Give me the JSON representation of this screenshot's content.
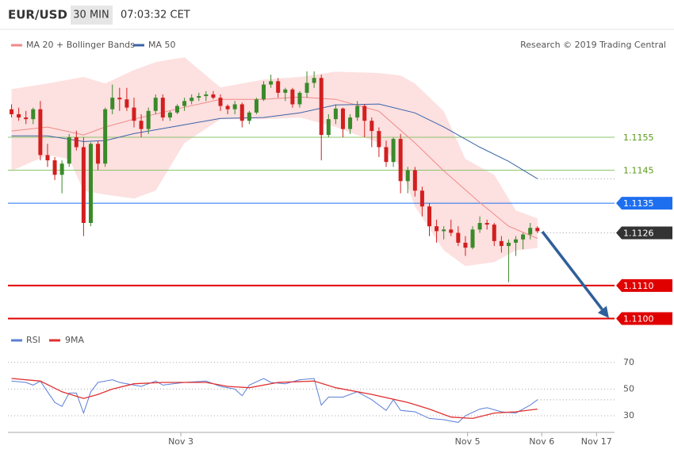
{
  "header": {
    "symbol": "EUR/USD",
    "interval": "30 MIN",
    "time": "07:03:32 CET"
  },
  "chart_data": [
    {
      "type": "candlestick",
      "credit": "Research © 2019 Trading Central",
      "up_color": "#3a8a2a",
      "down_color": "#d21f1f",
      "xlim": [
        -0.5,
        83.7
      ],
      "ylim": [
        1.10977,
        1.11798
      ],
      "ohlc": [
        [
          1.11635,
          1.1165,
          1.1161,
          1.1162
        ],
        [
          1.1162,
          1.1164,
          1.116,
          1.1161
        ],
        [
          1.1161,
          1.1163,
          1.1159,
          1.11605
        ],
        [
          1.11605,
          1.1164,
          1.1159,
          1.11635
        ],
        [
          1.11635,
          1.1166,
          1.1148,
          1.11496
        ],
        [
          1.11496,
          1.1153,
          1.1146,
          1.1148
        ],
        [
          1.1148,
          1.1149,
          1.1142,
          1.11436
        ],
        [
          1.11436,
          1.1148,
          1.1138,
          1.1147
        ],
        [
          1.1147,
          1.1156,
          1.1146,
          1.1155
        ],
        [
          1.1155,
          1.1157,
          1.1151,
          1.1152
        ],
        [
          1.1152,
          1.1155,
          1.1125,
          1.1129
        ],
        [
          1.1129,
          1.11535,
          1.1128,
          1.1153
        ],
        [
          1.1153,
          1.1154,
          1.1145,
          1.1147
        ],
        [
          1.1147,
          1.1164,
          1.1146,
          1.11635
        ],
        [
          1.11635,
          1.1171,
          1.1162,
          1.1167
        ],
        [
          1.1167,
          1.117,
          1.1163,
          1.11665
        ],
        [
          1.11665,
          1.117,
          1.1163,
          1.1164
        ],
        [
          1.1164,
          1.1167,
          1.1158,
          1.116
        ],
        [
          1.116,
          1.1162,
          1.1155,
          1.11575
        ],
        [
          1.11575,
          1.1164,
          1.1156,
          1.1163
        ],
        [
          1.1163,
          1.1168,
          1.1162,
          1.1167
        ],
        [
          1.1167,
          1.1168,
          1.116,
          1.1161
        ],
        [
          1.1161,
          1.1163,
          1.116,
          1.11625
        ],
        [
          1.11625,
          1.1165,
          1.1162,
          1.11645
        ],
        [
          1.11645,
          1.1167,
          1.1163,
          1.1166
        ],
        [
          1.1166,
          1.1168,
          1.1165,
          1.1167
        ],
        [
          1.1167,
          1.11685,
          1.1166,
          1.11675
        ],
        [
          1.11675,
          1.1169,
          1.1166,
          1.1168
        ],
        [
          1.1168,
          1.1169,
          1.11665,
          1.1167
        ],
        [
          1.1167,
          1.1168,
          1.1163,
          1.11645
        ],
        [
          1.11645,
          1.1165,
          1.1162,
          1.11635
        ],
        [
          1.11635,
          1.1166,
          1.1162,
          1.1165
        ],
        [
          1.1165,
          1.11655,
          1.1158,
          1.116
        ],
        [
          1.116,
          1.1163,
          1.1159,
          1.11625
        ],
        [
          1.11625,
          1.1167,
          1.1162,
          1.11665
        ],
        [
          1.11665,
          1.1172,
          1.1166,
          1.1171
        ],
        [
          1.1171,
          1.1174,
          1.117,
          1.1172
        ],
        [
          1.1172,
          1.1173,
          1.1167,
          1.11685
        ],
        [
          1.11685,
          1.117,
          1.1166,
          1.11695
        ],
        [
          1.11695,
          1.117,
          1.1164,
          1.1165
        ],
        [
          1.1165,
          1.1169,
          1.1164,
          1.11685
        ],
        [
          1.11685,
          1.1175,
          1.1167,
          1.11715
        ],
        [
          1.11715,
          1.1175,
          1.117,
          1.1173
        ],
        [
          1.1173,
          1.1174,
          1.1148,
          1.11557
        ],
        [
          1.11557,
          1.1162,
          1.1155,
          1.11605
        ],
        [
          1.11605,
          1.1165,
          1.1159,
          1.11637
        ],
        [
          1.11637,
          1.1164,
          1.1155,
          1.11575
        ],
        [
          1.11575,
          1.1162,
          1.1156,
          1.1161
        ],
        [
          1.1161,
          1.1166,
          1.116,
          1.11645
        ],
        [
          1.11645,
          1.1165,
          1.1155,
          1.116
        ],
        [
          1.116,
          1.1161,
          1.1152,
          1.11569
        ],
        [
          1.11569,
          1.1158,
          1.1149,
          1.1152
        ],
        [
          1.1152,
          1.1154,
          1.1146,
          1.11475
        ],
        [
          1.11475,
          1.1155,
          1.1146,
          1.11545
        ],
        [
          1.11545,
          1.1156,
          1.1138,
          1.11417
        ],
        [
          1.11417,
          1.1146,
          1.1138,
          1.1145
        ],
        [
          1.1145,
          1.1146,
          1.1137,
          1.11388
        ],
        [
          1.11388,
          1.114,
          1.1131,
          1.1134
        ],
        [
          1.1134,
          1.1135,
          1.1125,
          1.1128
        ],
        [
          1.1128,
          1.113,
          1.1123,
          1.11265
        ],
        [
          1.11265,
          1.1128,
          1.1124,
          1.1127
        ],
        [
          1.1127,
          1.113,
          1.1125,
          1.1126
        ],
        [
          1.1126,
          1.1128,
          1.1122,
          1.1123
        ],
        [
          1.1123,
          1.1125,
          1.1119,
          1.11215
        ],
        [
          1.11215,
          1.1128,
          1.1121,
          1.1127
        ],
        [
          1.1127,
          1.1131,
          1.1126,
          1.1129
        ],
        [
          1.1129,
          1.113,
          1.1127,
          1.11285
        ],
        [
          1.11285,
          1.1129,
          1.1122,
          1.11235
        ],
        [
          1.11235,
          1.1125,
          1.112,
          1.1122
        ],
        [
          1.1122,
          1.1124,
          1.1111,
          1.1123
        ],
        [
          1.1123,
          1.1125,
          1.1119,
          1.1124
        ],
        [
          1.1124,
          1.1126,
          1.1121,
          1.11255
        ],
        [
          1.11255,
          1.1129,
          1.1124,
          1.11275
        ],
        [
          1.11275,
          1.1128,
          1.1126,
          1.11265
        ]
      ],
      "series": [
        {
          "name": "MA 20 + Bollinger Bands",
          "color": "#f08a8a",
          "band_color": "#fde0e0",
          "x": [
            0,
            5,
            10,
            13,
            17,
            24,
            29,
            35,
            40,
            45,
            51,
            56,
            60,
            65,
            69,
            73
          ],
          "values": [
            1.11569,
            1.11581,
            1.11557,
            1.11581,
            1.11605,
            1.11641,
            1.11665,
            1.11665,
            1.11672,
            1.11665,
            1.11629,
            1.11533,
            1.11448,
            1.11352,
            1.1128,
            1.11243
          ],
          "band": {
            "x": [
              0,
              5,
              8,
              10,
              13,
              17,
              20,
              24,
              29,
              35,
              40,
              45,
              51,
              54,
              56,
              60,
              63,
              67,
              70,
              73
            ],
            "upper": [
              1.11696,
              1.11713,
              1.11725,
              1.11733,
              1.11713,
              1.11754,
              1.11778,
              1.11793,
              1.11701,
              1.11725,
              1.11733,
              1.11749,
              1.11745,
              1.11737,
              1.11713,
              1.11629,
              1.11484,
              1.11436,
              1.11328,
              1.11304
            ],
            "lower": [
              1.11448,
              1.11496,
              1.11484,
              1.11388,
              1.11376,
              1.11364,
              1.11388,
              1.11533,
              1.11605,
              1.11605,
              1.1161,
              1.11581,
              1.11533,
              1.1146,
              1.1134,
              1.11207,
              1.11159,
              1.11171,
              1.11207,
              1.11214
            ]
          }
        },
        {
          "name": "MA 50",
          "color": "#3a64a8",
          "x": [
            0,
            5,
            10,
            13,
            17,
            24,
            29,
            35,
            40,
            45,
            51,
            56,
            60,
            65,
            69,
            73
          ],
          "values": [
            1.11554,
            1.11554,
            1.11537,
            1.1154,
            1.11561,
            1.11588,
            1.11607,
            1.1161,
            1.11624,
            1.11648,
            1.11651,
            1.11624,
            1.11581,
            1.1152,
            1.11477,
            1.11424
          ]
        }
      ],
      "levels": [
        {
          "value": 1.1155,
          "color": "#8cc56a",
          "style": "thin",
          "boxed": false
        },
        {
          "value": 1.1145,
          "color": "#8cc56a",
          "style": "thin",
          "boxed": false
        },
        {
          "value": 1.1135,
          "color": "#1e6ff0",
          "style": "thin",
          "boxed": true
        },
        {
          "value": 1.1126,
          "color": "#333333",
          "style": "dotted",
          "boxed": true
        },
        {
          "value": 1.111,
          "label": "1.1110",
          "color": "#e00000",
          "style": "thick",
          "boxed": true
        },
        {
          "value": 1.11,
          "label": "1.1100",
          "color": "#e00000",
          "style": "thick",
          "boxed": true
        }
      ]
    },
    {
      "type": "line",
      "xlim": [
        -0.5,
        83.7
      ],
      "ylim": [
        17.5,
        80
      ],
      "yticks": [
        30,
        50,
        70
      ],
      "grid": true,
      "xticks": [
        {
          "value": 23.5,
          "label": "Nov 3"
        },
        {
          "value": 63.3,
          "label": "Nov 5"
        },
        {
          "value": 73.6,
          "label": "Nov 6"
        },
        {
          "value": 81.2,
          "label": "Nov 17"
        }
      ],
      "series": [
        {
          "name": "RSI",
          "color": "#5b7fd6",
          "x": [
            0,
            2,
            3,
            4,
            5,
            6,
            7,
            8,
            9,
            10,
            11,
            12,
            14,
            15,
            17,
            18,
            20,
            21,
            24,
            27,
            29,
            31,
            32,
            33,
            35,
            36,
            38,
            40,
            42,
            43,
            44,
            46,
            48,
            50,
            52,
            53,
            54,
            56,
            58,
            60,
            62,
            63,
            65,
            66,
            68,
            70,
            72,
            73
          ],
          "values": [
            56,
            55,
            53,
            56,
            48,
            40,
            37,
            47,
            47,
            32,
            48,
            55,
            57,
            55,
            53,
            52,
            56,
            53,
            55,
            56,
            52,
            50,
            45,
            53,
            58,
            55,
            54,
            57,
            58,
            38,
            44,
            44,
            48,
            42,
            34,
            42,
            34,
            33,
            28,
            27,
            25,
            30,
            35,
            36,
            33,
            32,
            38,
            42
          ]
        },
        {
          "name": "9MA",
          "color": "#e03030",
          "x": [
            0,
            4,
            7,
            10,
            12,
            14,
            17,
            21,
            27,
            30,
            33,
            37,
            42,
            45,
            50,
            55,
            58,
            61,
            64,
            67,
            70,
            73
          ],
          "values": [
            58,
            56,
            48,
            43,
            46,
            50,
            54,
            55,
            55,
            52,
            51,
            55,
            56,
            51,
            46,
            40,
            35,
            29,
            28,
            32,
            33,
            35
          ]
        }
      ]
    }
  ]
}
